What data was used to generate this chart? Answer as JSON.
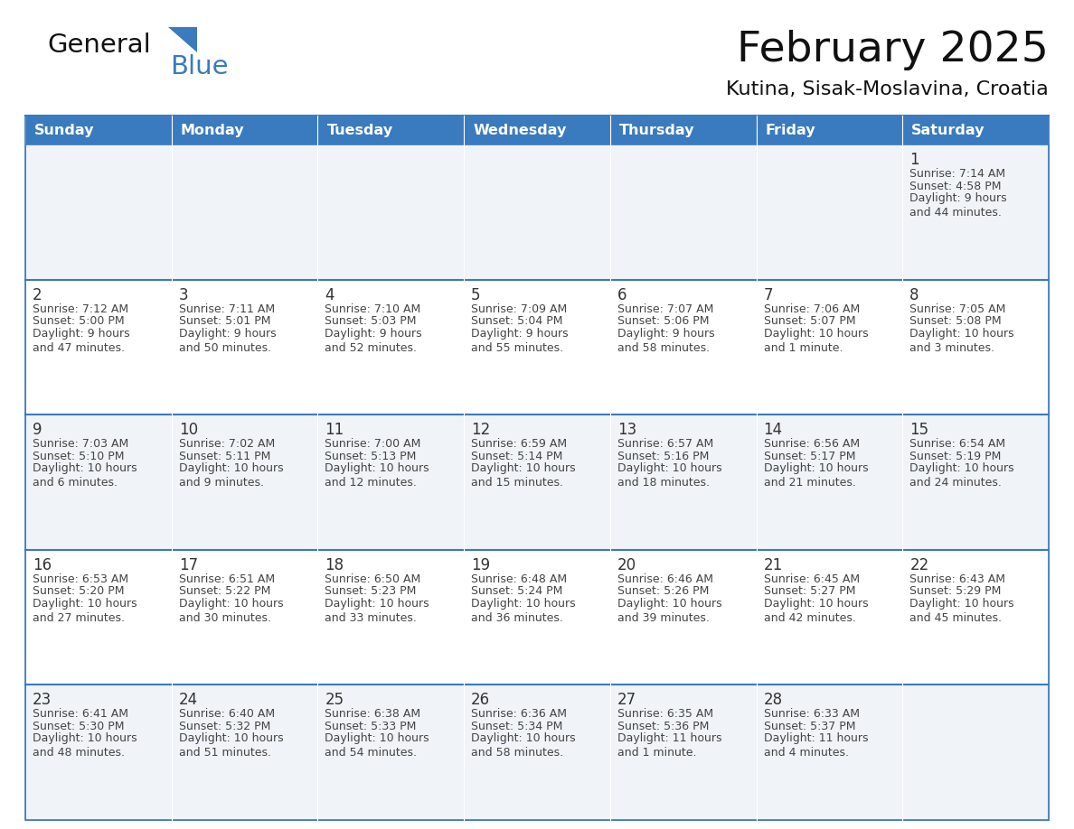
{
  "title": "February 2025",
  "subtitle": "Kutina, Sisak-Moslavina, Croatia",
  "header_color": "#3a7abf",
  "header_text_color": "#ffffff",
  "border_color": "#3a7abf",
  "cell_border_color": "#3a7abf",
  "text_color": "#444444",
  "day_number_color": "#333333",
  "row_bg_colors": [
    "#f5f7fa",
    "#ffffff",
    "#f5f7fa",
    "#ffffff",
    "#f5f7fa"
  ],
  "days_of_week": [
    "Sunday",
    "Monday",
    "Tuesday",
    "Wednesday",
    "Thursday",
    "Friday",
    "Saturday"
  ],
  "calendar_data": [
    [
      null,
      null,
      null,
      null,
      null,
      null,
      {
        "day": "1",
        "sunrise": "Sunrise: 7:14 AM",
        "sunset": "Sunset: 4:58 PM",
        "daylight": "Daylight: 9 hours\nand 44 minutes."
      }
    ],
    [
      {
        "day": "2",
        "sunrise": "Sunrise: 7:12 AM",
        "sunset": "Sunset: 5:00 PM",
        "daylight": "Daylight: 9 hours\nand 47 minutes."
      },
      {
        "day": "3",
        "sunrise": "Sunrise: 7:11 AM",
        "sunset": "Sunset: 5:01 PM",
        "daylight": "Daylight: 9 hours\nand 50 minutes."
      },
      {
        "day": "4",
        "sunrise": "Sunrise: 7:10 AM",
        "sunset": "Sunset: 5:03 PM",
        "daylight": "Daylight: 9 hours\nand 52 minutes."
      },
      {
        "day": "5",
        "sunrise": "Sunrise: 7:09 AM",
        "sunset": "Sunset: 5:04 PM",
        "daylight": "Daylight: 9 hours\nand 55 minutes."
      },
      {
        "day": "6",
        "sunrise": "Sunrise: 7:07 AM",
        "sunset": "Sunset: 5:06 PM",
        "daylight": "Daylight: 9 hours\nand 58 minutes."
      },
      {
        "day": "7",
        "sunrise": "Sunrise: 7:06 AM",
        "sunset": "Sunset: 5:07 PM",
        "daylight": "Daylight: 10 hours\nand 1 minute."
      },
      {
        "day": "8",
        "sunrise": "Sunrise: 7:05 AM",
        "sunset": "Sunset: 5:08 PM",
        "daylight": "Daylight: 10 hours\nand 3 minutes."
      }
    ],
    [
      {
        "day": "9",
        "sunrise": "Sunrise: 7:03 AM",
        "sunset": "Sunset: 5:10 PM",
        "daylight": "Daylight: 10 hours\nand 6 minutes."
      },
      {
        "day": "10",
        "sunrise": "Sunrise: 7:02 AM",
        "sunset": "Sunset: 5:11 PM",
        "daylight": "Daylight: 10 hours\nand 9 minutes."
      },
      {
        "day": "11",
        "sunrise": "Sunrise: 7:00 AM",
        "sunset": "Sunset: 5:13 PM",
        "daylight": "Daylight: 10 hours\nand 12 minutes."
      },
      {
        "day": "12",
        "sunrise": "Sunrise: 6:59 AM",
        "sunset": "Sunset: 5:14 PM",
        "daylight": "Daylight: 10 hours\nand 15 minutes."
      },
      {
        "day": "13",
        "sunrise": "Sunrise: 6:57 AM",
        "sunset": "Sunset: 5:16 PM",
        "daylight": "Daylight: 10 hours\nand 18 minutes."
      },
      {
        "day": "14",
        "sunrise": "Sunrise: 6:56 AM",
        "sunset": "Sunset: 5:17 PM",
        "daylight": "Daylight: 10 hours\nand 21 minutes."
      },
      {
        "day": "15",
        "sunrise": "Sunrise: 6:54 AM",
        "sunset": "Sunset: 5:19 PM",
        "daylight": "Daylight: 10 hours\nand 24 minutes."
      }
    ],
    [
      {
        "day": "16",
        "sunrise": "Sunrise: 6:53 AM",
        "sunset": "Sunset: 5:20 PM",
        "daylight": "Daylight: 10 hours\nand 27 minutes."
      },
      {
        "day": "17",
        "sunrise": "Sunrise: 6:51 AM",
        "sunset": "Sunset: 5:22 PM",
        "daylight": "Daylight: 10 hours\nand 30 minutes."
      },
      {
        "day": "18",
        "sunrise": "Sunrise: 6:50 AM",
        "sunset": "Sunset: 5:23 PM",
        "daylight": "Daylight: 10 hours\nand 33 minutes."
      },
      {
        "day": "19",
        "sunrise": "Sunrise: 6:48 AM",
        "sunset": "Sunset: 5:24 PM",
        "daylight": "Daylight: 10 hours\nand 36 minutes."
      },
      {
        "day": "20",
        "sunrise": "Sunrise: 6:46 AM",
        "sunset": "Sunset: 5:26 PM",
        "daylight": "Daylight: 10 hours\nand 39 minutes."
      },
      {
        "day": "21",
        "sunrise": "Sunrise: 6:45 AM",
        "sunset": "Sunset: 5:27 PM",
        "daylight": "Daylight: 10 hours\nand 42 minutes."
      },
      {
        "day": "22",
        "sunrise": "Sunrise: 6:43 AM",
        "sunset": "Sunset: 5:29 PM",
        "daylight": "Daylight: 10 hours\nand 45 minutes."
      }
    ],
    [
      {
        "day": "23",
        "sunrise": "Sunrise: 6:41 AM",
        "sunset": "Sunset: 5:30 PM",
        "daylight": "Daylight: 10 hours\nand 48 minutes."
      },
      {
        "day": "24",
        "sunrise": "Sunrise: 6:40 AM",
        "sunset": "Sunset: 5:32 PM",
        "daylight": "Daylight: 10 hours\nand 51 minutes."
      },
      {
        "day": "25",
        "sunrise": "Sunrise: 6:38 AM",
        "sunset": "Sunset: 5:33 PM",
        "daylight": "Daylight: 10 hours\nand 54 minutes."
      },
      {
        "day": "26",
        "sunrise": "Sunrise: 6:36 AM",
        "sunset": "Sunset: 5:34 PM",
        "daylight": "Daylight: 10 hours\nand 58 minutes."
      },
      {
        "day": "27",
        "sunrise": "Sunrise: 6:35 AM",
        "sunset": "Sunset: 5:36 PM",
        "daylight": "Daylight: 11 hours\nand 1 minute."
      },
      {
        "day": "28",
        "sunrise": "Sunrise: 6:33 AM",
        "sunset": "Sunset: 5:37 PM",
        "daylight": "Daylight: 11 hours\nand 4 minutes."
      },
      null
    ]
  ],
  "figsize": [
    11.88,
    9.18
  ],
  "dpi": 100
}
